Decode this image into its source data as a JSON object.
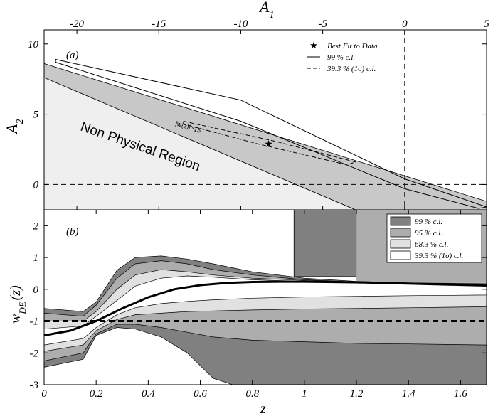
{
  "chart_data": [
    {
      "panel": "a",
      "type": "scatter",
      "panel_label": "(a)",
      "xlabel": "A",
      "xlabel_sub": "1",
      "ylabel": "A",
      "ylabel_sub": "2",
      "xlim": [
        -22.0,
        5.0
      ],
      "ylim": [
        -1.8,
        11.0
      ],
      "xticks": [
        -20,
        -15,
        -10,
        -5,
        0,
        5
      ],
      "yticks": [
        0,
        5,
        10
      ],
      "reference_lines": {
        "x": 0,
        "y": 0
      },
      "regions": [
        {
          "name": "Non Physical Region",
          "label": "Non Physical Region",
          "boundary": [
            [
              -22.0,
              7.6
            ],
            [
              -3.0,
              -1.8
            ]
          ]
        },
        {
          "name": "|w(z)|>15",
          "label": "|w(z)|>15",
          "band_upper": [
            [
              -22.0,
              8.6
            ],
            [
              5.0,
              -1.2
            ]
          ],
          "band_lower": [
            [
              -22.0,
              7.6
            ],
            [
              -3.0,
              -1.8
            ]
          ]
        }
      ],
      "contours": [
        {
          "name": "99 % c.l.",
          "style": "solid",
          "points": [
            [
              -21.3,
              8.9
            ],
            [
              -10.0,
              6.0
            ],
            [
              0.0,
              0.4
            ],
            [
              5.0,
              -1.6
            ],
            [
              4.5,
              -1.7
            ],
            [
              0.0,
              -0.3
            ],
            [
              -10.0,
              4.5
            ],
            [
              -21.3,
              8.7
            ]
          ]
        },
        {
          "name": "39.3 % (1σ) c.l.",
          "style": "dashed",
          "points": [
            [
              -13.5,
              4.5
            ],
            [
              -8.0,
              3.1
            ],
            [
              -3.0,
              1.6
            ],
            [
              -3.5,
              1.4
            ],
            [
              -9.0,
              2.9
            ],
            [
              -13.5,
              4.3
            ]
          ]
        }
      ],
      "best_fit": {
        "name": "Best Fit to Data",
        "x": -8.3,
        "y": 2.9
      },
      "legend": {
        "position": "top-right",
        "entries": [
          {
            "symbol": "★",
            "label": "Best Fit to Data"
          },
          {
            "symbol": "solid",
            "label": "99 % c.l."
          },
          {
            "symbol": "dashed",
            "label": "39.3 % (1σ) c.l."
          }
        ]
      }
    },
    {
      "panel": "b",
      "type": "area",
      "panel_label": "(b)",
      "xlabel": "z",
      "ylabel": "w",
      "ylabel_sub": "DE",
      "ylabel_suffix": "(z)",
      "xlim": [
        0,
        1.7
      ],
      "ylim": [
        -3,
        2.5
      ],
      "xticks": [
        0,
        0.2,
        0.4,
        0.6,
        0.8,
        1,
        1.2,
        1.4,
        1.6
      ],
      "yticks": [
        -3,
        -2,
        -1,
        0,
        1,
        2
      ],
      "reference_line": {
        "y": -1,
        "style": "thick-dashed"
      },
      "best_fit": {
        "z": [
          0.0,
          0.1,
          0.2,
          0.3,
          0.4,
          0.5,
          0.6,
          0.7,
          0.8,
          0.9,
          1.0,
          1.2,
          1.4,
          1.6,
          1.7
        ],
        "w": [
          -1.45,
          -1.3,
          -1.0,
          -0.6,
          -0.25,
          0.0,
          0.13,
          0.2,
          0.23,
          0.24,
          0.24,
          0.22,
          0.18,
          0.14,
          0.12
        ]
      },
      "bands": [
        {
          "name": "99 % c.l.",
          "color": "#808080",
          "z": [
            0.0,
            0.15,
            0.2,
            0.28,
            0.35,
            0.45,
            0.55,
            0.65,
            0.8,
            1.0,
            1.2,
            1.4,
            1.7
          ],
          "upper": [
            -0.6,
            -0.7,
            -0.4,
            0.6,
            1.0,
            1.05,
            0.95,
            0.8,
            0.55,
            0.35,
            0.25,
            0.2,
            0.18
          ],
          "lower": [
            -2.45,
            -2.2,
            -1.45,
            -1.2,
            -1.25,
            -1.5,
            -2.0,
            -2.8,
            -3.2,
            -3.3,
            -3.3,
            -3.3,
            -3.3
          ]
        },
        {
          "name": "95 % c.l.",
          "color": "#adadad",
          "z": [
            0.0,
            0.15,
            0.2,
            0.28,
            0.35,
            0.45,
            0.55,
            0.65,
            0.8,
            1.0,
            1.2,
            1.4,
            1.7
          ],
          "upper": [
            -0.75,
            -0.85,
            -0.5,
            0.35,
            0.8,
            0.9,
            0.8,
            0.62,
            0.45,
            0.3,
            0.23,
            0.19,
            0.16
          ],
          "lower": [
            -2.25,
            -2.0,
            -1.4,
            -1.1,
            -1.1,
            -1.2,
            -1.35,
            -1.5,
            -1.6,
            -1.65,
            -1.7,
            -1.72,
            -1.75
          ]
        },
        {
          "name": "68.3 % c.l.",
          "color": "#e1e1e1",
          "z": [
            0.0,
            0.15,
            0.2,
            0.28,
            0.35,
            0.45,
            0.55,
            0.65,
            0.8,
            1.0,
            1.2,
            1.4,
            1.7
          ],
          "upper": [
            -1.0,
            -1.0,
            -0.7,
            0.0,
            0.45,
            0.62,
            0.55,
            0.45,
            0.35,
            0.28,
            0.22,
            0.18,
            0.15
          ],
          "lower": [
            -1.95,
            -1.75,
            -1.3,
            -0.95,
            -0.8,
            -0.75,
            -0.7,
            -0.68,
            -0.65,
            -0.62,
            -0.6,
            -0.58,
            -0.55
          ]
        },
        {
          "name": "39.3 % (1σ) c.l.",
          "color": "#ffffff",
          "z": [
            0.0,
            0.15,
            0.2,
            0.28,
            0.35,
            0.45,
            0.55,
            0.65,
            0.8,
            1.0,
            1.2,
            1.4,
            1.7
          ],
          "upper": [
            -1.25,
            -1.15,
            -0.85,
            -0.35,
            0.1,
            0.35,
            0.42,
            0.38,
            0.3,
            0.25,
            0.2,
            0.17,
            0.14
          ],
          "lower": [
            -1.75,
            -1.55,
            -1.2,
            -0.8,
            -0.58,
            -0.45,
            -0.38,
            -0.33,
            -0.28,
            -0.24,
            -0.22,
            -0.2,
            -0.18
          ]
        }
      ],
      "top_region_99": {
        "color": "#808080",
        "z_range": [
          0.96,
          1.2
        ],
        "w_from": 0.4
      },
      "legend": {
        "position": "top-right",
        "entries": [
          {
            "color": "#808080",
            "label": "99 % c.l."
          },
          {
            "color": "#adadad",
            "label": "95 % c.l."
          },
          {
            "color": "#e1e1e1",
            "label": "68.3 % c.l."
          },
          {
            "color": "#ffffff",
            "label": "39.3 % (1σ) c.l."
          }
        ]
      }
    }
  ]
}
